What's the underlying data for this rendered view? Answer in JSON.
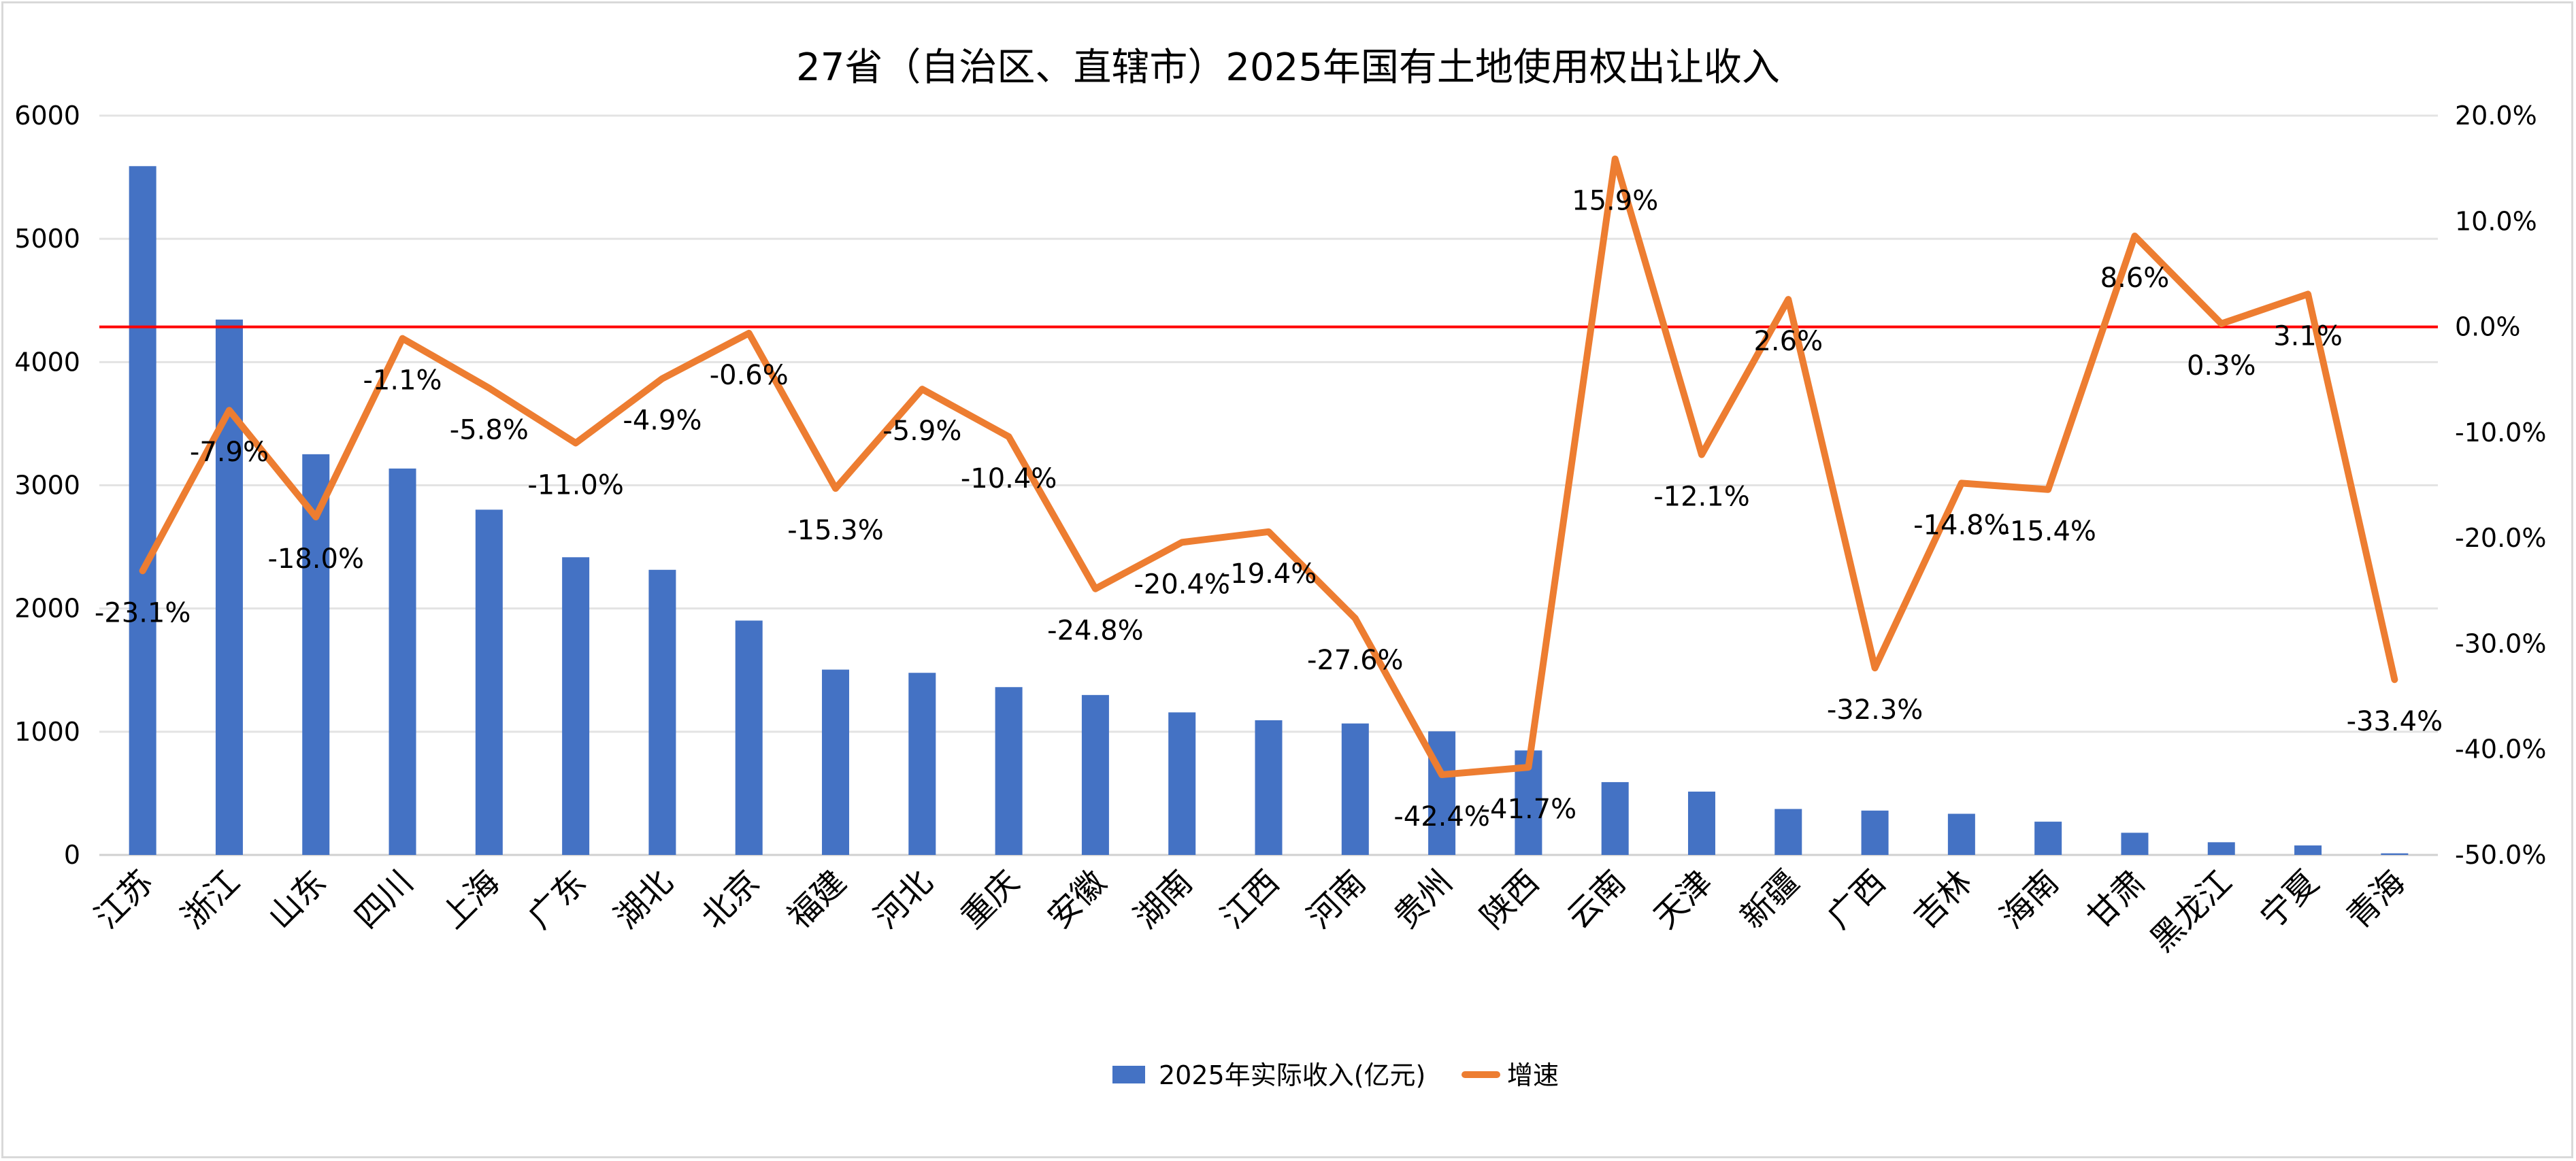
{
  "chart_data": {
    "type": "bar+line",
    "title": "27省（自治区、直辖市）2025年国有土地使用权出让收入",
    "categories": [
      "江苏",
      "浙江",
      "山东",
      "四川",
      "上海",
      "广东",
      "湖北",
      "北京",
      "福建",
      "河北",
      "重庆",
      "安徽",
      "湖南",
      "江西",
      "河南",
      "贵州",
      "陕西",
      "云南",
      "天津",
      "新疆",
      "广西",
      "吉林",
      "海南",
      "甘肃",
      "黑龙江",
      "宁夏",
      "青海"
    ],
    "series": [
      {
        "name": "2025年实际收入(亿元)",
        "type": "bar",
        "axis": "left",
        "color": "#4472C4",
        "values": [
          5590,
          4345,
          3252,
          3136,
          2802,
          2416,
          2314,
          1902,
          1504,
          1478,
          1362,
          1298,
          1157,
          1093,
          1067,
          1003,
          848,
          591,
          514,
          373,
          360,
          334,
          270,
          180,
          103,
          77,
          13
        ]
      },
      {
        "name": "增速",
        "type": "line",
        "axis": "right",
        "color": "#ED7D31",
        "values": [
          -23.1,
          -7.9,
          -18.0,
          -1.1,
          -5.8,
          -11.0,
          -4.9,
          -0.6,
          -15.3,
          -5.9,
          -10.4,
          -24.8,
          -20.4,
          -19.4,
          -27.6,
          -42.4,
          -41.7,
          15.9,
          -12.1,
          2.6,
          -32.3,
          -14.8,
          -15.4,
          8.6,
          0.3,
          3.1,
          -33.4
        ],
        "labels": [
          "-23.1%",
          "-7.9%",
          "-18.0%",
          "-1.1%",
          "-5.8%",
          "-11.0%",
          "-4.9%",
          "-0.6%",
          "-15.3%",
          "-5.9%",
          "-10.4%",
          "-24.8%",
          "-20.4%",
          "-19.4%",
          "-27.6%",
          "-42.4%",
          "-41.7%",
          "15.9%",
          "-12.1%",
          "2.6%",
          "-32.3%",
          "-14.8%",
          "-15.4%",
          "8.6%",
          "0.3%",
          "3.1%",
          "-33.4%"
        ]
      }
    ],
    "left_axis": {
      "ylim": [
        0,
        6000
      ],
      "ticks": [
        "0",
        "1000",
        "2000",
        "3000",
        "4000",
        "5000",
        "6000"
      ]
    },
    "right_axis": {
      "ylim": [
        -50,
        20
      ],
      "ticks": [
        "-50.0%",
        "-40.0%",
        "-30.0%",
        "-20.0%",
        "-10.0%",
        "0.0%",
        "10.0%",
        "20.0%"
      ]
    },
    "reference_line": {
      "axis": "right",
      "value": 0,
      "color": "#FF0000"
    },
    "grid": true,
    "legend": {
      "position": "bottom",
      "entries": [
        "2025年实际收入(亿元)",
        "增速"
      ]
    }
  }
}
